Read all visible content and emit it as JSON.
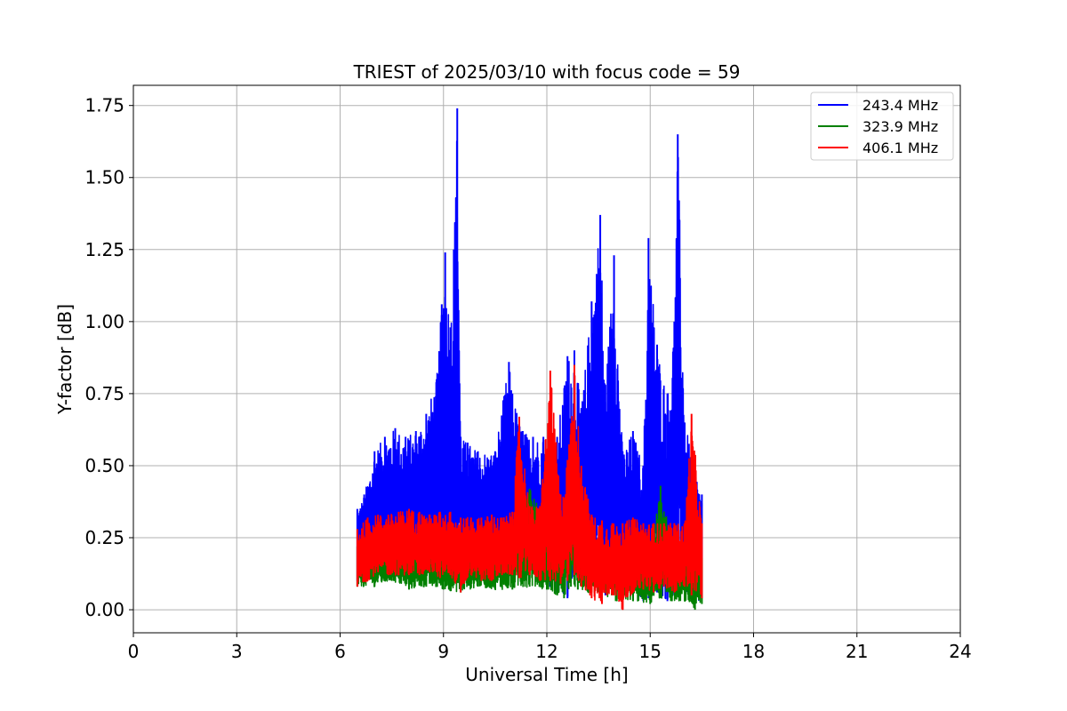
{
  "chart_data": {
    "type": "line",
    "title": "TRIEST of 2025/03/10 with focus code = 59",
    "xlabel": "Universal Time [h]",
    "ylabel": "Y-factor [dB]",
    "xlim": [
      0,
      24
    ],
    "ylim": [
      -0.08,
      1.82
    ],
    "xticks": [
      0,
      3,
      6,
      9,
      12,
      15,
      18,
      21,
      24
    ],
    "xtick_labels": [
      "0",
      "3",
      "6",
      "9",
      "12",
      "15",
      "18",
      "21",
      "24"
    ],
    "yticks": [
      0.0,
      0.25,
      0.5,
      0.75,
      1.0,
      1.25,
      1.5,
      1.75
    ],
    "ytick_labels": [
      "0.00",
      "0.25",
      "0.50",
      "0.75",
      "1.00",
      "1.25",
      "1.50",
      "1.75"
    ],
    "grid": true,
    "legend_position": "top-right",
    "series": [
      {
        "name": "243.4 MHz",
        "color": "#0000ff",
        "x": [
          6.5,
          6.7,
          7.0,
          7.3,
          7.6,
          7.9,
          8.2,
          8.5,
          8.8,
          8.95,
          9.05,
          9.2,
          9.3,
          9.4,
          9.5,
          9.7,
          10.0,
          10.5,
          10.9,
          11.0,
          11.3,
          11.6,
          11.9,
          12.1,
          12.3,
          12.6,
          12.8,
          13.0,
          13.3,
          13.55,
          13.7,
          13.95,
          14.2,
          14.5,
          14.8,
          14.95,
          15.2,
          15.5,
          15.7,
          15.8,
          16.0,
          16.3,
          16.5
        ],
        "min": [
          0.1,
          0.1,
          0.14,
          0.15,
          0.15,
          0.15,
          0.14,
          0.15,
          0.14,
          0.15,
          0.16,
          0.16,
          0.15,
          0.22,
          0.1,
          0.16,
          0.15,
          0.16,
          0.16,
          0.15,
          0.15,
          0.14,
          0.12,
          0.08,
          0.06,
          0.04,
          0.1,
          0.12,
          0.1,
          0.08,
          0.05,
          0.08,
          0.06,
          0.05,
          0.03,
          0.04,
          0.06,
          0.03,
          0.05,
          0.06,
          0.04,
          0.02,
          0.04
        ],
        "max": [
          0.35,
          0.4,
          0.55,
          0.6,
          0.63,
          0.6,
          0.62,
          0.68,
          0.8,
          1.06,
          1.24,
          0.98,
          1.25,
          1.74,
          0.6,
          0.58,
          0.55,
          0.55,
          0.86,
          0.75,
          0.62,
          0.6,
          0.6,
          0.55,
          0.6,
          0.88,
          0.9,
          0.7,
          1.07,
          1.37,
          0.78,
          1.23,
          0.55,
          0.62,
          0.5,
          1.29,
          0.92,
          0.75,
          1.0,
          1.65,
          0.65,
          0.5,
          0.4
        ]
      },
      {
        "name": "323.9 MHz",
        "color": "#008000",
        "x": [
          6.5,
          7.0,
          7.5,
          8.0,
          8.5,
          9.0,
          9.5,
          10.0,
          10.5,
          11.0,
          11.5,
          12.0,
          12.3,
          12.5,
          12.7,
          12.9,
          13.2,
          13.6,
          14.0,
          14.5,
          15.0,
          15.3,
          15.6,
          16.0,
          16.3,
          16.5
        ],
        "min": [
          0.08,
          0.08,
          0.1,
          0.07,
          0.08,
          0.07,
          0.06,
          0.08,
          0.07,
          0.07,
          0.08,
          0.07,
          0.05,
          0.04,
          0.08,
          0.07,
          0.06,
          0.05,
          0.03,
          0.03,
          0.02,
          0.04,
          0.03,
          0.03,
          0.0,
          0.02
        ],
        "max": [
          0.22,
          0.24,
          0.24,
          0.25,
          0.25,
          0.26,
          0.26,
          0.25,
          0.26,
          0.28,
          0.42,
          0.3,
          0.26,
          0.34,
          0.4,
          0.3,
          0.22,
          0.22,
          0.23,
          0.22,
          0.2,
          0.43,
          0.25,
          0.22,
          0.2,
          0.18
        ]
      },
      {
        "name": "406.1 MHz",
        "color": "#ff0000",
        "x": [
          6.5,
          6.8,
          7.1,
          7.4,
          7.7,
          8.0,
          8.3,
          8.6,
          8.9,
          9.2,
          9.5,
          9.8,
          10.1,
          10.4,
          10.7,
          11.0,
          11.2,
          11.5,
          11.8,
          12.1,
          12.4,
          12.6,
          12.8,
          13.0,
          13.3,
          13.6,
          13.9,
          14.2,
          14.5,
          14.8,
          15.1,
          15.4,
          15.7,
          16.0,
          16.2,
          16.5
        ],
        "min": [
          0.08,
          0.1,
          0.13,
          0.12,
          0.12,
          0.12,
          0.12,
          0.13,
          0.11,
          0.12,
          0.06,
          0.12,
          0.1,
          0.1,
          0.12,
          0.12,
          0.11,
          0.12,
          0.1,
          0.1,
          0.09,
          0.1,
          0.12,
          0.08,
          0.04,
          0.02,
          0.05,
          0.0,
          0.06,
          0.07,
          0.06,
          0.08,
          0.06,
          0.08,
          0.05,
          0.04
        ],
        "max": [
          0.28,
          0.32,
          0.33,
          0.33,
          0.34,
          0.35,
          0.34,
          0.33,
          0.34,
          0.34,
          0.32,
          0.32,
          0.32,
          0.33,
          0.32,
          0.34,
          0.67,
          0.36,
          0.36,
          0.83,
          0.4,
          0.52,
          0.85,
          0.5,
          0.33,
          0.31,
          0.3,
          0.3,
          0.32,
          0.3,
          0.3,
          0.3,
          0.3,
          0.3,
          0.68,
          0.3
        ]
      }
    ]
  }
}
